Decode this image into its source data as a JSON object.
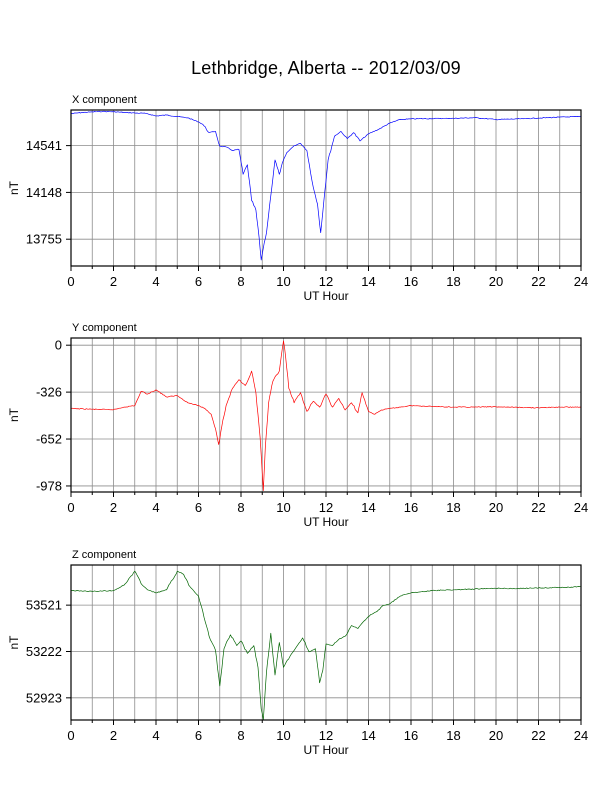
{
  "title": "Lethbridge, Alberta -- 2012/03/09",
  "chart_data": [
    {
      "type": "line",
      "panel_title": "X component",
      "xlabel": "UT Hour",
      "ylabel": "nT",
      "xlim": [
        0,
        24
      ],
      "ylim": [
        13530,
        14840
      ],
      "yticks": [
        13755,
        14148,
        14541
      ],
      "xticks": [
        0,
        2,
        4,
        6,
        8,
        10,
        12,
        14,
        16,
        18,
        20,
        22,
        24
      ],
      "grid": true,
      "color": "#0000ff",
      "x": [
        0,
        0.5,
        1,
        1.5,
        2,
        2.5,
        3,
        3.5,
        4,
        4.5,
        5,
        5.5,
        6,
        6.2,
        6.5,
        6.8,
        7,
        7.3,
        7.6,
        7.9,
        8.1,
        8.3,
        8.5,
        8.7,
        8.85,
        8.95,
        9.05,
        9.2,
        9.4,
        9.6,
        9.8,
        10,
        10.2,
        10.5,
        10.8,
        11.1,
        11.4,
        11.6,
        11.75,
        11.9,
        12.1,
        12.4,
        12.7,
        13,
        13.3,
        13.6,
        14,
        14.5,
        15,
        15.5,
        16,
        17,
        18,
        19,
        20,
        21,
        22,
        23,
        24
      ],
      "y": [
        14810,
        14818,
        14824,
        14828,
        14825,
        14820,
        14815,
        14812,
        14790,
        14798,
        14785,
        14774,
        14740,
        14720,
        14650,
        14660,
        14535,
        14530,
        14500,
        14510,
        14300,
        14380,
        14080,
        14000,
        13770,
        13580,
        13680,
        13810,
        14120,
        14420,
        14300,
        14420,
        14490,
        14540,
        14560,
        14500,
        14190,
        14050,
        13810,
        14080,
        14420,
        14620,
        14660,
        14600,
        14650,
        14580,
        14640,
        14680,
        14730,
        14760,
        14765,
        14768,
        14770,
        14775,
        14760,
        14765,
        14772,
        14780,
        14785
      ]
    },
    {
      "type": "line",
      "panel_title": "Y component",
      "xlabel": "UT Hour",
      "ylabel": "nT",
      "xlim": [
        0,
        24
      ],
      "ylim": [
        -1020,
        50
      ],
      "yticks": [
        -978,
        -652,
        -326,
        0
      ],
      "xticks": [
        0,
        2,
        4,
        6,
        8,
        10,
        12,
        14,
        16,
        18,
        20,
        22,
        24
      ],
      "grid": true,
      "color": "#ff0000",
      "x": [
        0,
        1,
        2,
        2.5,
        3,
        3.3,
        3.6,
        4,
        4.5,
        5,
        5.5,
        6,
        6.3,
        6.6,
        6.8,
        6.95,
        7.1,
        7.3,
        7.6,
        7.9,
        8.2,
        8.5,
        8.7,
        8.9,
        9.05,
        9.15,
        9.3,
        9.5,
        9.8,
        10,
        10.1,
        10.25,
        10.5,
        10.8,
        11.1,
        11.4,
        11.7,
        12,
        12.3,
        12.6,
        12.9,
        13.2,
        13.5,
        13.7,
        14,
        14.3,
        14.6,
        15,
        15.5,
        16,
        17,
        18,
        19,
        20,
        21,
        22,
        23,
        24
      ],
      "y": [
        -440,
        -445,
        -448,
        -430,
        -420,
        -320,
        -340,
        -310,
        -360,
        -350,
        -400,
        -420,
        -440,
        -480,
        -580,
        -690,
        -560,
        -420,
        -300,
        -240,
        -280,
        -180,
        -330,
        -640,
        -1010,
        -700,
        -400,
        -250,
        -180,
        30,
        -80,
        -300,
        -400,
        -330,
        -460,
        -390,
        -430,
        -340,
        -430,
        -370,
        -450,
        -400,
        -470,
        -330,
        -460,
        -480,
        -450,
        -440,
        -430,
        -420,
        -425,
        -430,
        -430,
        -428,
        -432,
        -435,
        -430,
        -430
      ]
    },
    {
      "type": "line",
      "panel_title": "Z component",
      "xlabel": "UT Hour",
      "ylabel": "nT",
      "xlim": [
        0,
        24
      ],
      "ylim": [
        52780,
        53780
      ],
      "yticks": [
        52923,
        53222,
        53521
      ],
      "xticks": [
        0,
        2,
        4,
        6,
        8,
        10,
        12,
        14,
        16,
        18,
        20,
        22,
        24
      ],
      "grid": true,
      "color": "#006400",
      "x": [
        0,
        1,
        2,
        2.5,
        3,
        3.3,
        3.6,
        4,
        4.5,
        5,
        5.3,
        5.6,
        6,
        6.2,
        6.5,
        6.8,
        7,
        7.2,
        7.5,
        7.8,
        8,
        8.3,
        8.6,
        8.8,
        8.95,
        9.05,
        9.2,
        9.4,
        9.6,
        9.8,
        10,
        10.3,
        10.6,
        10.9,
        11.2,
        11.5,
        11.7,
        11.85,
        12,
        12.3,
        12.6,
        12.9,
        13.2,
        13.5,
        13.8,
        14.1,
        14.4,
        14.7,
        15,
        15.5,
        16,
        17,
        18,
        19,
        20,
        21,
        22,
        23,
        24
      ],
      "y": [
        53615,
        53610,
        53615,
        53650,
        53740,
        53660,
        53620,
        53600,
        53620,
        53740,
        53720,
        53640,
        53580,
        53480,
        53320,
        53230,
        53000,
        53240,
        53330,
        53260,
        53290,
        53210,
        53260,
        53120,
        52850,
        52780,
        53090,
        53340,
        53070,
        53280,
        53120,
        53190,
        53250,
        53310,
        53220,
        53240,
        53020,
        53100,
        53270,
        53260,
        53300,
        53320,
        53390,
        53370,
        53420,
        53460,
        53480,
        53520,
        53530,
        53580,
        53600,
        53615,
        53620,
        53625,
        53630,
        53628,
        53632,
        53635,
        53640
      ]
    }
  ]
}
